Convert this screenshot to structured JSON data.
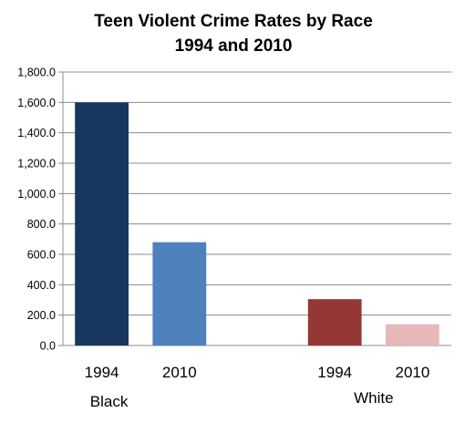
{
  "chart_data": {
    "type": "bar",
    "title": "Teen Violent Crime Rates by Race",
    "subtitle": "1994 and 2010",
    "xlabel": "",
    "ylabel": "",
    "ylim": [
      0,
      1800
    ],
    "y_ticks": [
      "0.0",
      "200.0",
      "400.0",
      "600.0",
      "800.0",
      "1,000.0",
      "1,200.0",
      "1,400.0",
      "1,600.0",
      "1,800.0"
    ],
    "grid": true,
    "legend": "none",
    "groups": [
      {
        "name": "Black",
        "bars": [
          {
            "category": "1994",
            "value": 1600,
            "color": "#17375e"
          },
          {
            "category": "2010",
            "value": 680,
            "color": "#4f81bd"
          }
        ]
      },
      {
        "name": "White",
        "bars": [
          {
            "category": "1994",
            "value": 305,
            "color": "#953735"
          },
          {
            "category": "2010",
            "value": 140,
            "color": "#e6b9b8"
          }
        ]
      }
    ]
  }
}
